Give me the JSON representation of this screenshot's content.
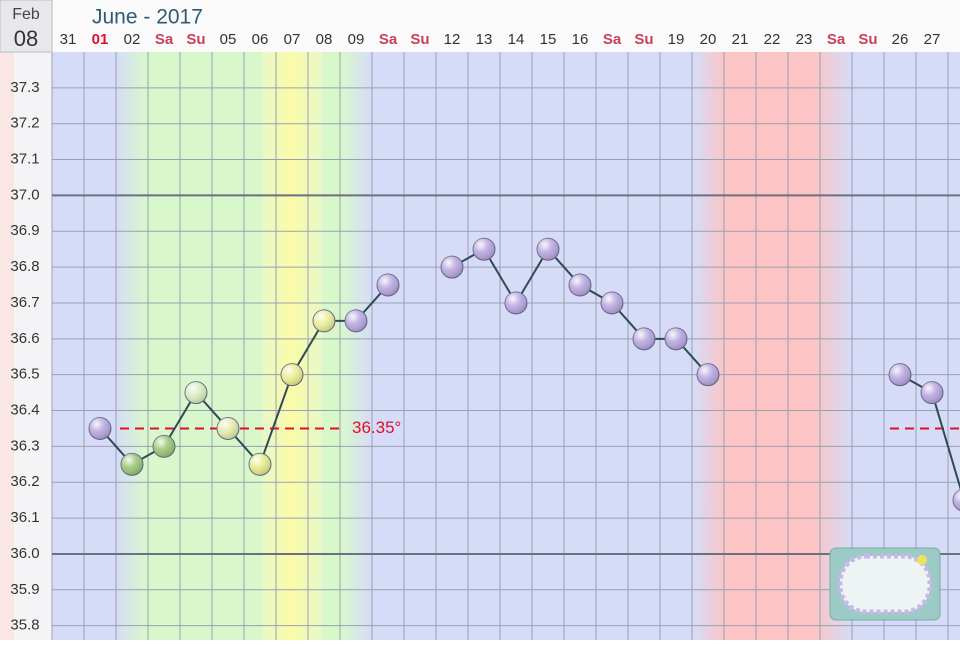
{
  "chart_data": {
    "type": "line",
    "date_month": "Feb",
    "date_day": "08",
    "title": "June - 2017",
    "categories": [
      "31",
      "01",
      "02",
      "Sa",
      "Su",
      "05",
      "06",
      "07",
      "08",
      "09",
      "Sa",
      "Su",
      "12",
      "13",
      "14",
      "15",
      "16",
      "Sa",
      "Su",
      "19",
      "20",
      "21",
      "22",
      "23",
      "Sa",
      "Su",
      "26",
      "27",
      "2"
    ],
    "category_colors": [
      "#333",
      "#e0102a",
      "#333",
      "#c8405a",
      "#c8405a",
      "#333",
      "#333",
      "#333",
      "#333",
      "#333",
      "#c8405a",
      "#c8405a",
      "#333",
      "#333",
      "#333",
      "#333",
      "#333",
      "#c8405a",
      "#c8405a",
      "#333",
      "#333",
      "#333",
      "#333",
      "#333",
      "#c8405a",
      "#c8405a",
      "#333",
      "#333",
      "#333"
    ],
    "series": [
      {
        "name": "Temperature",
        "color": "#b9a8e0",
        "values": [
          null,
          36.35,
          36.25,
          36.3,
          36.45,
          36.35,
          36.25,
          36.5,
          36.65,
          36.65,
          36.75,
          null,
          36.8,
          36.85,
          36.7,
          36.85,
          36.75,
          36.7,
          36.6,
          36.6,
          36.5,
          null,
          null,
          null,
          null,
          null,
          36.5,
          36.45,
          36.15
        ],
        "point_colors": [
          null,
          "#b9a8e0",
          "#9cc77a",
          "#9cc77a",
          "#d8ecc0",
          "#e4ecac",
          "#e4ec8c",
          "#e8ee90",
          "#e8ee9a",
          "#b9a8e0",
          "#b9a8e0",
          null,
          "#b9a8e0",
          "#b9a8e0",
          "#b9a8e0",
          "#b9a8e0",
          "#b9a8e0",
          "#b9a8e0",
          "#b9a8e0",
          "#b9a8e0",
          "#b9a8e0",
          null,
          null,
          null,
          null,
          null,
          "#b9a8e0",
          "#b9a8e0",
          "#b9a8e0"
        ]
      }
    ],
    "coverline": 36.35,
    "coverline_label": "36.35°",
    "coverline_color": "#e0102a",
    "ylim": [
      35.76,
      37.4
    ],
    "yticks": [
      35.8,
      35.9,
      {
        "value": 36,
        "label": "36.0"
      },
      36.1,
      36.2,
      36.3,
      36.4,
      36.5,
      36.6,
      36.7,
      36.8,
      36.9,
      {
        "value": 37,
        "label": "37.0"
      },
      37.1,
      37.2,
      37.3
    ],
    "grid": true
  }
}
